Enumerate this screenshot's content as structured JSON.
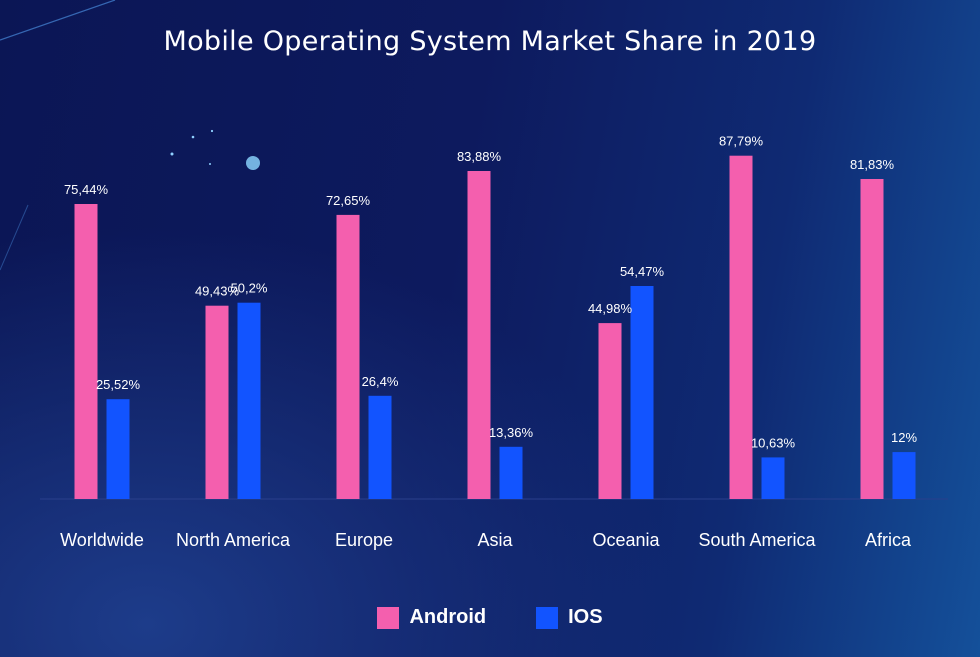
{
  "chart_data": {
    "type": "bar",
    "title": "Mobile Operating System Market Share in 2019",
    "categories": [
      "Worldwide",
      "North America",
      "Europe",
      "Asia",
      "Oceania",
      "South America",
      "Africa"
    ],
    "series": [
      {
        "name": "Android",
        "color": "#f45fae",
        "values": [
          75.44,
          49.43,
          72.65,
          83.88,
          44.98,
          87.79,
          81.83
        ],
        "labels": [
          "75,44%",
          "49,43%",
          "72,65%",
          "83,88%",
          "44,98%",
          "87,79%",
          "81,83%"
        ]
      },
      {
        "name": "IOS",
        "color": "#1254ff",
        "values": [
          25.52,
          50.2,
          26.4,
          13.36,
          54.47,
          10.63,
          12
        ],
        "labels": [
          "25,52%",
          "50,2%",
          "26,4%",
          "13,36%",
          "54,47%",
          "10,63%",
          "12%"
        ]
      }
    ],
    "ylim": [
      0,
      100
    ],
    "grid": false,
    "legend_placement": "bottom-center"
  }
}
